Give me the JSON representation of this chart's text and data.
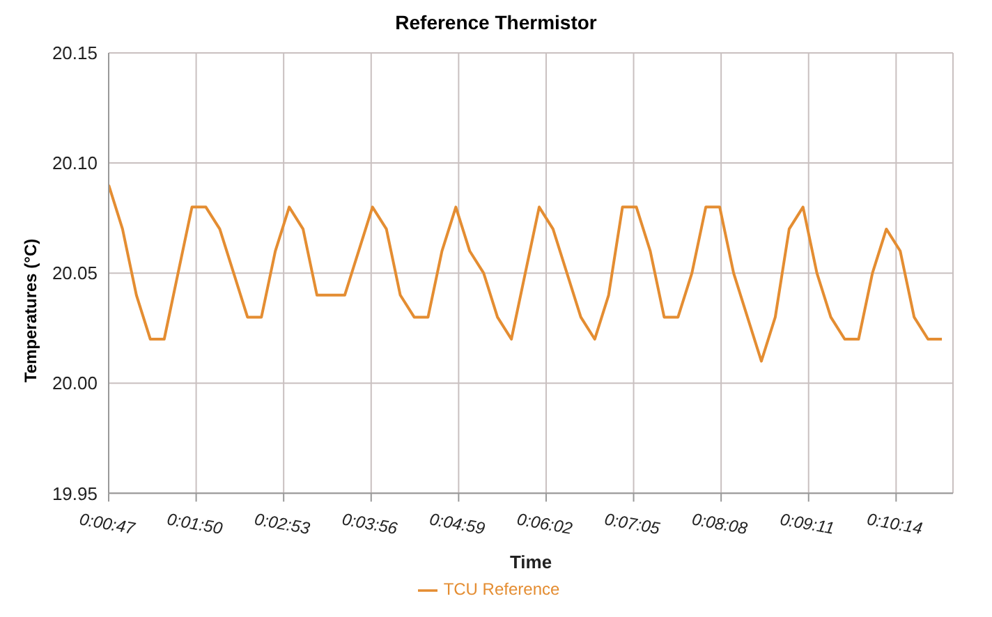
{
  "chart_data": {
    "type": "line",
    "title": "Reference Thermistor",
    "xlabel": "Time",
    "ylabel": "Temperatures (°C)",
    "x": [
      0.01306,
      0.01583,
      0.01861,
      0.02139,
      0.02417,
      0.02694,
      0.02972,
      0.0325,
      0.03528,
      0.03806,
      0.04083,
      0.04361,
      0.04639,
      0.04917,
      0.05194,
      0.05472,
      0.0575,
      0.06028,
      0.06306,
      0.06583,
      0.06861,
      0.07139,
      0.07417,
      0.07694,
      0.07972,
      0.0825,
      0.08528,
      0.08806,
      0.09083,
      0.09361,
      0.09639,
      0.09917,
      0.10194,
      0.10472,
      0.1075,
      0.11028,
      0.11306,
      0.11583,
      0.11861,
      0.12139,
      0.12417,
      0.12694,
      0.12972,
      0.1325,
      0.13528,
      0.13806,
      0.14083,
      0.14361,
      0.14639,
      0.14917,
      0.15194,
      0.15472,
      0.1575,
      0.16028,
      0.16306,
      0.16583,
      0.16861,
      0.17139,
      0.17417,
      0.17694,
      0.17972
    ],
    "series": [
      {
        "name": "TCU Reference",
        "color": "#e48d32",
        "values": [
          20.09,
          20.07,
          20.04,
          20.02,
          20.02,
          20.05,
          20.08,
          20.08,
          20.07,
          20.05,
          20.03,
          20.03,
          20.06,
          20.08,
          20.07,
          20.04,
          20.04,
          20.04,
          20.06,
          20.08,
          20.07,
          20.04,
          20.03,
          20.03,
          20.06,
          20.08,
          20.06,
          20.05,
          20.03,
          20.02,
          20.05,
          20.08,
          20.07,
          20.05,
          20.03,
          20.02,
          20.04,
          20.08,
          20.08,
          20.06,
          20.03,
          20.03,
          20.05,
          20.08,
          20.08,
          20.05,
          20.03,
          20.01,
          20.03,
          20.07,
          20.08,
          20.05,
          20.03,
          20.02,
          20.02,
          20.05,
          20.07,
          20.06,
          20.03,
          20.02,
          20.02
        ]
      }
    ],
    "xlim": [
      0.01306,
      0.18194
    ],
    "xticks": [
      {
        "value": 0.01306,
        "label": "0:00:47"
      },
      {
        "value": 0.03056,
        "label": "0:01:50"
      },
      {
        "value": 0.04806,
        "label": "0:02:53"
      },
      {
        "value": 0.06556,
        "label": "0:03:56"
      },
      {
        "value": 0.08306,
        "label": "0:04:59"
      },
      {
        "value": 0.10056,
        "label": "0:06:02"
      },
      {
        "value": 0.11806,
        "label": "0:07:05"
      },
      {
        "value": 0.13556,
        "label": "0:08:08"
      },
      {
        "value": 0.15306,
        "label": "0:09:11"
      },
      {
        "value": 0.17056,
        "label": "0:10:14"
      }
    ],
    "ylim": [
      19.95,
      20.15
    ],
    "yticks": [
      19.95,
      {
        "value": 20,
        "label": "20.00"
      },
      20.05,
      {
        "value": 20.1,
        "label": "20.10"
      },
      20.15
    ],
    "grid": true,
    "legend": "bottom",
    "marker": "none",
    "line_style": "solid"
  }
}
